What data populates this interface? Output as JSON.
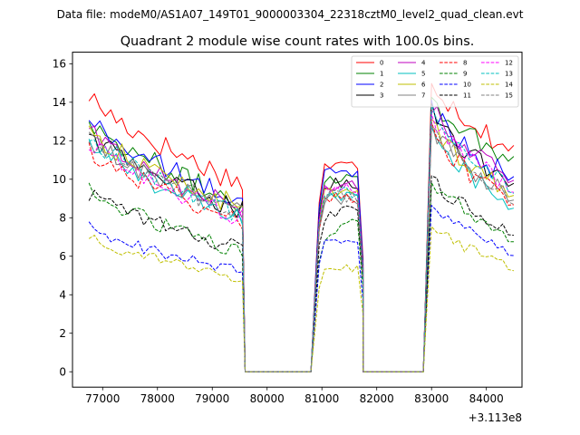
{
  "figure": {
    "suptitle": "Data file: modeM0/AS1A07_149T01_9000003304_22318cztM0_level2_quad_clean.evt"
  },
  "chart_data": {
    "type": "line",
    "title": "Quadrant 2 module wise count rates with 100.0s bins.",
    "xlabel": "",
    "ylabel": "",
    "x_offset_label": "+3.113e8",
    "xlim": [
      76450,
      84650
    ],
    "ylim": [
      -0.8,
      16.6
    ],
    "x_ticks": [
      77000,
      78000,
      79000,
      80000,
      81000,
      82000,
      83000,
      84000
    ],
    "x_tick_labels": [
      "77000",
      "78000",
      "79000",
      "80000",
      "81000",
      "82000",
      "83000",
      "84000"
    ],
    "y_ticks": [
      0,
      2,
      4,
      6,
      8,
      10,
      12,
      14,
      16
    ],
    "y_tick_labels": [
      "0",
      "2",
      "4",
      "6",
      "8",
      "10",
      "12",
      "14",
      "16"
    ],
    "legend_location": "upper right",
    "segments": [
      {
        "start": 76750,
        "end": 79550
      },
      {
        "start": 79600,
        "end": 80850
      },
      {
        "start": 80850,
        "end": 81750
      },
      {
        "start": 81750,
        "end": 82900
      },
      {
        "start": 82900,
        "end": 84500
      }
    ],
    "series": [
      {
        "name": "0",
        "color": "#ff0000",
        "dashed": false,
        "s1": [
          14.4,
          9.8
        ],
        "s2": [
          10.7,
          10.7
        ],
        "s3": [
          15.4,
          11.4
        ]
      },
      {
        "name": "1",
        "color": "#008000",
        "dashed": false,
        "s1": [
          13.2,
          8.7
        ],
        "s2": [
          10.1,
          10.1
        ],
        "s3": [
          14.4,
          10.9
        ]
      },
      {
        "name": "2",
        "color": "#0000ff",
        "dashed": false,
        "s1": [
          13.2,
          8.8
        ],
        "s2": [
          10.4,
          10.2
        ],
        "s3": [
          14.0,
          9.9
        ]
      },
      {
        "name": "3",
        "color": "#000000",
        "dashed": false,
        "s1": [
          12.4,
          8.4
        ],
        "s2": [
          9.8,
          9.8
        ],
        "s3": [
          13.6,
          9.6
        ]
      },
      {
        "name": "4",
        "color": "#bf00bf",
        "dashed": false,
        "s1": [
          12.6,
          8.4
        ],
        "s2": [
          9.6,
          9.6
        ],
        "s3": [
          14.0,
          9.8
        ]
      },
      {
        "name": "5",
        "color": "#00bfbf",
        "dashed": false,
        "s1": [
          12.0,
          7.8
        ],
        "s2": [
          9.2,
          9.1
        ],
        "s3": [
          13.0,
          8.4
        ]
      },
      {
        "name": "6",
        "color": "#bfbf00",
        "dashed": false,
        "s1": [
          12.6,
          8.5
        ],
        "s2": [
          9.4,
          9.2
        ],
        "s3": [
          13.2,
          9.1
        ]
      },
      {
        "name": "7",
        "color": "#808080",
        "dashed": false,
        "s1": [
          12.2,
          8.2
        ],
        "s2": [
          9.0,
          9.0
        ],
        "s3": [
          12.8,
          8.9
        ]
      },
      {
        "name": "8",
        "color": "#ff0000",
        "dashed": true,
        "s1": [
          11.6,
          7.9
        ],
        "s2": [
          9.0,
          9.0
        ],
        "s3": [
          12.6,
          8.7
        ]
      },
      {
        "name": "9",
        "color": "#008000",
        "dashed": true,
        "s1": [
          9.5,
          6.2
        ],
        "s2": [
          7.0,
          7.8
        ],
        "s3": [
          10.2,
          6.8
        ]
      },
      {
        "name": "10",
        "color": "#0000ff",
        "dashed": true,
        "s1": [
          7.5,
          5.2
        ],
        "s2": [
          6.8,
          6.6
        ],
        "s3": [
          8.8,
          6.1
        ]
      },
      {
        "name": "11",
        "color": "#000000",
        "dashed": true,
        "s1": [
          9.3,
          6.4
        ],
        "s2": [
          8.0,
          8.6
        ],
        "s3": [
          10.2,
          7.2
        ]
      },
      {
        "name": "12",
        "color": "#ff00ff",
        "dashed": true,
        "s1": [
          12.0,
          8.0
        ],
        "s2": [
          9.6,
          9.4
        ],
        "s3": [
          13.2,
          9.5
        ]
      },
      {
        "name": "13",
        "color": "#00bfbf",
        "dashed": true,
        "s1": [
          12.4,
          8.1
        ],
        "s2": [
          9.4,
          9.2
        ],
        "s3": [
          13.4,
          9.5
        ]
      },
      {
        "name": "14",
        "color": "#bfbf00",
        "dashed": true,
        "s1": [
          7.1,
          4.8
        ],
        "s2": [
          5.3,
          5.4
        ],
        "s3": [
          7.8,
          5.4
        ]
      },
      {
        "name": "15",
        "color": "#808080",
        "dashed": true,
        "s1": [
          12.2,
          8.2
        ],
        "s2": [
          9.2,
          9.1
        ],
        "s3": [
          13.0,
          9.0
        ]
      }
    ]
  }
}
